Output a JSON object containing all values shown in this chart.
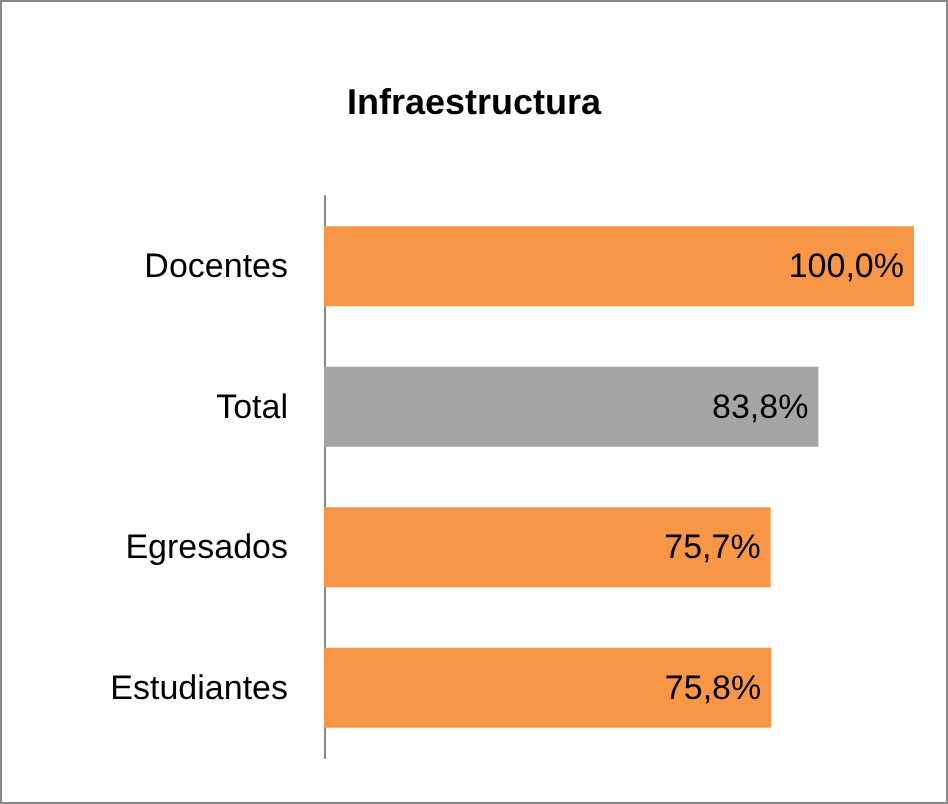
{
  "chart_data": {
    "type": "bar",
    "orientation": "horizontal",
    "title": "Infraestructura",
    "categories": [
      "Docentes",
      "Total",
      "Egresados",
      "Estudiantes"
    ],
    "values": [
      100,
      83.8,
      75.7,
      75.8
    ],
    "value_labels": [
      "100,0%",
      "83,8%",
      "75,7%",
      "75,8%"
    ],
    "colors": [
      "#f79646",
      "#a5a5a5",
      "#f79646",
      "#f79646"
    ]
  }
}
